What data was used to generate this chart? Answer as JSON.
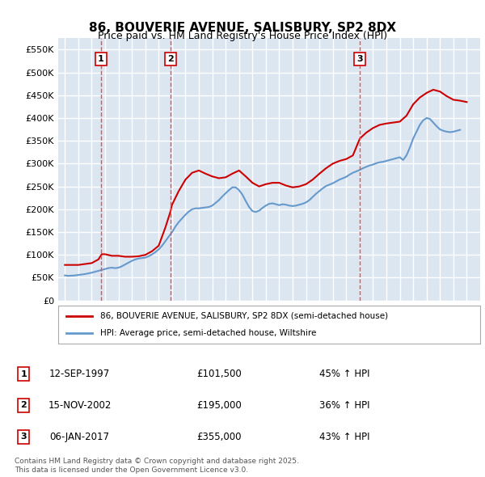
{
  "title": "86, BOUVERIE AVENUE, SALISBURY, SP2 8DX",
  "subtitle": "Price paid vs. HM Land Registry's House Price Index (HPI)",
  "ylabel_ticks": [
    0,
    50000,
    100000,
    150000,
    200000,
    250000,
    300000,
    350000,
    400000,
    450000,
    500000,
    550000
  ],
  "ylabel_labels": [
    "£0",
    "£50K",
    "£100K",
    "£150K",
    "£200K",
    "£250K",
    "£300K",
    "£350K",
    "£400K",
    "£450K",
    "£500K",
    "£550K"
  ],
  "xlim": [
    1994.5,
    2026
  ],
  "ylim": [
    0,
    575000
  ],
  "background_color": "#dce6f1",
  "plot_bg_color": "#dce6f1",
  "grid_color": "#ffffff",
  "red_line_color": "#cc0000",
  "blue_line_color": "#6699cc",
  "marker_line_color": "#ff4444",
  "purchases": [
    {
      "date_year": 1997.7,
      "price": 101500,
      "label": "1",
      "date_str": "12-SEP-1997",
      "price_str": "£101,500",
      "hpi_str": "45% ↑ HPI"
    },
    {
      "date_year": 2002.88,
      "price": 195000,
      "label": "2",
      "date_str": "15-NOV-2002",
      "price_str": "£195,000",
      "hpi_str": "36% ↑ HPI"
    },
    {
      "date_year": 2017.02,
      "price": 355000,
      "label": "3",
      "date_str": "06-JAN-2017",
      "price_str": "£355,000",
      "hpi_str": "43% ↑ HPI"
    }
  ],
  "legend_line1": "86, BOUVERIE AVENUE, SALISBURY, SP2 8DX (semi-detached house)",
  "legend_line2": "HPI: Average price, semi-detached house, Wiltshire",
  "footnote": "Contains HM Land Registry data © Crown copyright and database right 2025.\nThis data is licensed under the Open Government Licence v3.0.",
  "hpi_data": {
    "years": [
      1995.0,
      1995.25,
      1995.5,
      1995.75,
      1996.0,
      1996.25,
      1996.5,
      1996.75,
      1997.0,
      1997.25,
      1997.5,
      1997.75,
      1998.0,
      1998.25,
      1998.5,
      1998.75,
      1999.0,
      1999.25,
      1999.5,
      1999.75,
      2000.0,
      2000.25,
      2000.5,
      2000.75,
      2001.0,
      2001.25,
      2001.5,
      2001.75,
      2002.0,
      2002.25,
      2002.5,
      2002.75,
      2003.0,
      2003.25,
      2003.5,
      2003.75,
      2004.0,
      2004.25,
      2004.5,
      2004.75,
      2005.0,
      2005.25,
      2005.5,
      2005.75,
      2006.0,
      2006.25,
      2006.5,
      2006.75,
      2007.0,
      2007.25,
      2007.5,
      2007.75,
      2008.0,
      2008.25,
      2008.5,
      2008.75,
      2009.0,
      2009.25,
      2009.5,
      2009.75,
      2010.0,
      2010.25,
      2010.5,
      2010.75,
      2011.0,
      2011.25,
      2011.5,
      2011.75,
      2012.0,
      2012.25,
      2012.5,
      2012.75,
      2013.0,
      2013.25,
      2013.5,
      2013.75,
      2014.0,
      2014.25,
      2014.5,
      2014.75,
      2015.0,
      2015.25,
      2015.5,
      2015.75,
      2016.0,
      2016.25,
      2016.5,
      2016.75,
      2017.0,
      2017.25,
      2017.5,
      2017.75,
      2018.0,
      2018.25,
      2018.5,
      2018.75,
      2019.0,
      2019.25,
      2019.5,
      2019.75,
      2020.0,
      2020.25,
      2020.5,
      2020.75,
      2021.0,
      2021.25,
      2021.5,
      2021.75,
      2022.0,
      2022.25,
      2022.5,
      2022.75,
      2023.0,
      2023.25,
      2023.5,
      2023.75,
      2024.0,
      2024.25,
      2024.5
    ],
    "values": [
      55000,
      54000,
      54500,
      55000,
      56000,
      57000,
      58000,
      59500,
      61000,
      63000,
      65000,
      67000,
      69000,
      71000,
      72000,
      71000,
      72000,
      75000,
      79000,
      83000,
      87000,
      90000,
      92000,
      93000,
      94000,
      97000,
      101000,
      106000,
      112000,
      120000,
      130000,
      140000,
      150000,
      162000,
      172000,
      180000,
      188000,
      195000,
      200000,
      202000,
      202000,
      203000,
      204000,
      205000,
      208000,
      214000,
      220000,
      228000,
      235000,
      242000,
      248000,
      248000,
      242000,
      232000,
      218000,
      205000,
      196000,
      194000,
      197000,
      203000,
      208000,
      212000,
      213000,
      211000,
      209000,
      211000,
      210000,
      208000,
      207000,
      208000,
      210000,
      212000,
      215000,
      220000,
      227000,
      234000,
      240000,
      246000,
      251000,
      254000,
      257000,
      261000,
      265000,
      268000,
      271000,
      276000,
      280000,
      283000,
      286000,
      290000,
      293000,
      296000,
      298000,
      301000,
      303000,
      304000,
      306000,
      308000,
      310000,
      312000,
      314000,
      308000,
      318000,
      335000,
      355000,
      370000,
      385000,
      395000,
      400000,
      398000,
      390000,
      382000,
      375000,
      372000,
      370000,
      369000,
      370000,
      372000,
      374000
    ]
  },
  "red_data": {
    "years": [
      1995.0,
      1995.5,
      1996.0,
      1996.5,
      1997.0,
      1997.5,
      1997.75,
      1998.0,
      1998.5,
      1999.0,
      1999.5,
      2000.0,
      2000.5,
      2001.0,
      2001.5,
      2002.0,
      2002.5,
      2002.88,
      2003.0,
      2003.5,
      2004.0,
      2004.5,
      2005.0,
      2005.5,
      2006.0,
      2006.5,
      2007.0,
      2007.5,
      2008.0,
      2008.5,
      2009.0,
      2009.5,
      2010.0,
      2010.5,
      2011.0,
      2011.5,
      2012.0,
      2012.5,
      2013.0,
      2013.5,
      2014.0,
      2014.5,
      2015.0,
      2015.5,
      2016.0,
      2016.5,
      2017.02,
      2017.5,
      2018.0,
      2018.5,
      2019.0,
      2019.5,
      2020.0,
      2020.5,
      2021.0,
      2021.5,
      2022.0,
      2022.5,
      2023.0,
      2023.5,
      2024.0,
      2024.5,
      2025.0
    ],
    "values": [
      78000,
      78000,
      78000,
      80000,
      82000,
      90000,
      101500,
      101500,
      98000,
      98000,
      96000,
      96000,
      97000,
      100000,
      108000,
      120000,
      160000,
      195000,
      210000,
      240000,
      265000,
      280000,
      285000,
      278000,
      272000,
      268000,
      270000,
      278000,
      285000,
      272000,
      258000,
      250000,
      255000,
      258000,
      258000,
      252000,
      248000,
      250000,
      255000,
      265000,
      278000,
      290000,
      300000,
      306000,
      310000,
      318000,
      355000,
      368000,
      378000,
      385000,
      388000,
      390000,
      392000,
      405000,
      430000,
      445000,
      455000,
      462000,
      458000,
      448000,
      440000,
      438000,
      435000
    ]
  }
}
